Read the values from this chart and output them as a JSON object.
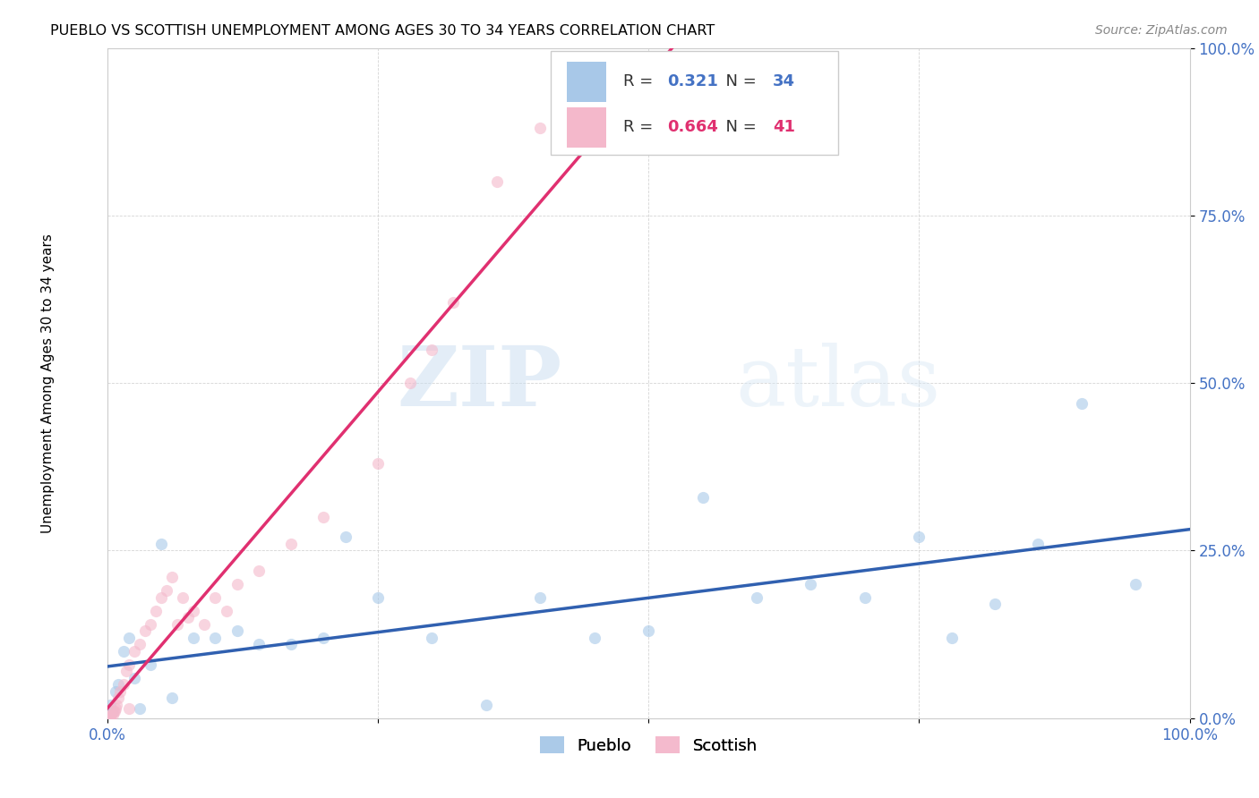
{
  "title": "PUEBLO VS SCOTTISH UNEMPLOYMENT AMONG AGES 30 TO 34 YEARS CORRELATION CHART",
  "source": "Source: ZipAtlas.com",
  "ylabel": "Unemployment Among Ages 30 to 34 years",
  "ytick_labels": [
    "0.0%",
    "25.0%",
    "50.0%",
    "75.0%",
    "100.0%"
  ],
  "ytick_values": [
    0,
    25,
    50,
    75,
    100
  ],
  "legend_pueblo_R": "0.321",
  "legend_pueblo_N": "34",
  "legend_scottish_R": "0.664",
  "legend_scottish_N": "41",
  "pueblo_color": "#a8c8e8",
  "scottish_color": "#f4b8cb",
  "pueblo_line_color": "#3060b0",
  "scottish_line_color": "#e03070",
  "watermark_zip": "ZIP",
  "watermark_atlas": "atlas",
  "pueblo_x": [
    0.3,
    0.5,
    0.8,
    1.0,
    1.5,
    2.0,
    2.5,
    3.0,
    4.0,
    5.0,
    6.0,
    8.0,
    10.0,
    12.0,
    14.0,
    17.0,
    20.0,
    22.0,
    25.0,
    30.0,
    35.0,
    40.0,
    45.0,
    50.0,
    55.0,
    60.0,
    65.0,
    70.0,
    75.0,
    78.0,
    82.0,
    86.0,
    90.0,
    95.0
  ],
  "pueblo_y": [
    2.0,
    1.0,
    4.0,
    5.0,
    10.0,
    12.0,
    6.0,
    1.5,
    8.0,
    26.0,
    3.0,
    12.0,
    12.0,
    13.0,
    11.0,
    11.0,
    12.0,
    27.0,
    18.0,
    12.0,
    2.0,
    18.0,
    12.0,
    13.0,
    33.0,
    18.0,
    20.0,
    18.0,
    27.0,
    12.0,
    17.0,
    26.0,
    47.0,
    20.0
  ],
  "scottish_x": [
    0.1,
    0.15,
    0.2,
    0.3,
    0.4,
    0.5,
    0.6,
    0.7,
    0.8,
    0.9,
    1.0,
    1.2,
    1.5,
    1.8,
    2.0,
    2.5,
    3.0,
    3.5,
    4.0,
    4.5,
    5.0,
    5.5,
    6.0,
    6.5,
    7.0,
    7.5,
    8.0,
    9.0,
    10.0,
    11.0,
    12.0,
    14.0,
    17.0,
    20.0,
    25.0,
    28.0,
    30.0,
    32.0,
    36.0,
    40.0,
    2.0
  ],
  "scottish_y": [
    0.3,
    0.3,
    0.3,
    0.3,
    0.5,
    0.5,
    1.0,
    1.0,
    1.5,
    2.0,
    3.0,
    4.0,
    5.0,
    7.0,
    8.0,
    10.0,
    11.0,
    13.0,
    14.0,
    16.0,
    18.0,
    19.0,
    21.0,
    14.0,
    18.0,
    15.0,
    16.0,
    14.0,
    18.0,
    16.0,
    20.0,
    22.0,
    26.0,
    30.0,
    38.0,
    50.0,
    55.0,
    62.0,
    80.0,
    88.0,
    1.5
  ]
}
